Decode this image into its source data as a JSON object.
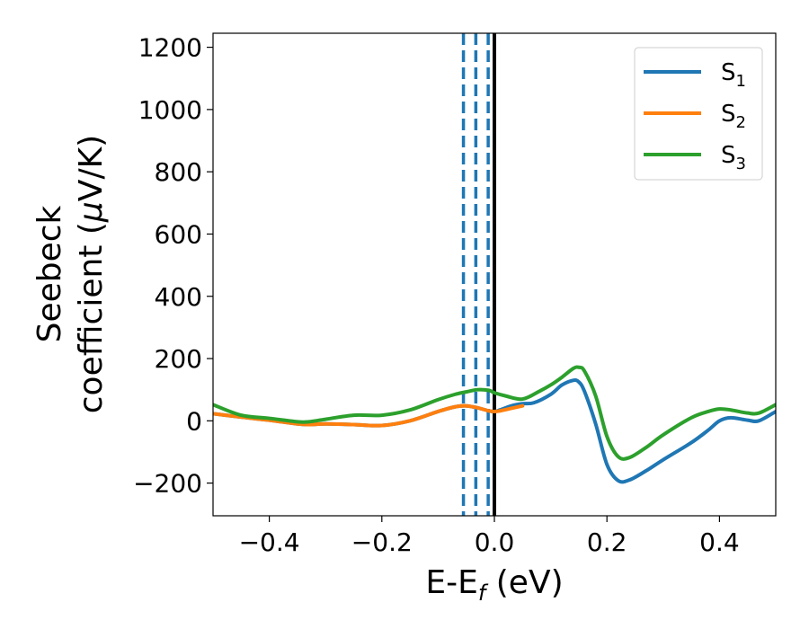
{
  "chart_data": {
    "type": "line",
    "xlabel": "E-E",
    "xlabel_sub": "f",
    "xlabel_unit": " (eV)",
    "ylabel_line1": "Seebeck",
    "ylabel_line2": "coefficient  (",
    "ylabel_mu": "μ",
    "ylabel_unit": "V/K)",
    "xlim": [
      -0.5,
      0.5
    ],
    "ylim": [
      -305,
      1245
    ],
    "xticks": [
      -0.4,
      -0.2,
      0.0,
      0.2,
      0.4
    ],
    "xtick_labels": [
      "−0.4",
      "−0.2",
      "0.0",
      "0.2",
      "0.4"
    ],
    "yticks": [
      -200,
      0,
      200,
      400,
      600,
      800,
      1000,
      1200
    ],
    "ytick_labels": [
      "−200",
      "0",
      "200",
      "400",
      "600",
      "800",
      "1000",
      "1200"
    ],
    "grid": false,
    "legend_position": "top-right",
    "series": [
      {
        "name": "S",
        "name_sub": "1",
        "color": "#1f77b4",
        "x": [
          -0.5,
          -0.45,
          -0.4,
          -0.35,
          -0.33,
          -0.3,
          -0.25,
          -0.2,
          -0.15,
          -0.1,
          -0.07,
          -0.05,
          -0.03,
          -0.01,
          0.0,
          0.01,
          0.03,
          0.05,
          0.07,
          0.1,
          0.12,
          0.14,
          0.15,
          0.16,
          0.18,
          0.2,
          0.22,
          0.24,
          0.27,
          0.3,
          0.35,
          0.38,
          0.4,
          0.42,
          0.45,
          0.47,
          0.5
        ],
        "y": [
          23,
          12,
          2,
          -10,
          -12,
          -10,
          -12,
          -15,
          0,
          30,
          45,
          48,
          42,
          32,
          30,
          35,
          48,
          55,
          58,
          85,
          115,
          130,
          125,
          95,
          -10,
          -140,
          -192,
          -190,
          -160,
          -125,
          -70,
          -30,
          0,
          10,
          2,
          0,
          30
        ]
      },
      {
        "name": "S",
        "name_sub": "2",
        "color": "#ff7f0e",
        "x": [
          -0.5,
          -0.45,
          -0.4,
          -0.35,
          -0.33,
          -0.3,
          -0.25,
          -0.2,
          -0.15,
          -0.1,
          -0.07,
          -0.05,
          -0.03,
          -0.01,
          0.0,
          0.01,
          0.03,
          0.05
        ],
        "y": [
          23,
          12,
          2,
          -10,
          -12,
          -10,
          -12,
          -15,
          0,
          30,
          45,
          48,
          42,
          32,
          30,
          32,
          40,
          48
        ]
      },
      {
        "name": "S",
        "name_sub": "3",
        "color": "#2ca02c",
        "x": [
          -0.5,
          -0.45,
          -0.4,
          -0.35,
          -0.33,
          -0.3,
          -0.25,
          -0.2,
          -0.15,
          -0.1,
          -0.07,
          -0.05,
          -0.03,
          -0.01,
          0.0,
          0.02,
          0.05,
          0.08,
          0.1,
          0.12,
          0.14,
          0.15,
          0.16,
          0.18,
          0.2,
          0.22,
          0.24,
          0.27,
          0.3,
          0.35,
          0.38,
          0.4,
          0.42,
          0.45,
          0.47,
          0.5
        ],
        "y": [
          52,
          18,
          8,
          -3,
          -3,
          5,
          18,
          18,
          35,
          68,
          85,
          93,
          100,
          98,
          90,
          80,
          70,
          95,
          115,
          140,
          168,
          172,
          160,
          80,
          -50,
          -115,
          -118,
          -85,
          -45,
          10,
          30,
          38,
          35,
          25,
          25,
          52
        ]
      }
    ],
    "vlines": [
      {
        "x": -0.055,
        "style": "dashed",
        "color": "#1f77b4"
      },
      {
        "x": -0.033,
        "style": "dashed",
        "color": "#1f77b4"
      },
      {
        "x": -0.011,
        "style": "dashed",
        "color": "#1f77b4"
      },
      {
        "x": 0.0,
        "style": "solid",
        "color": "#000000"
      }
    ]
  }
}
